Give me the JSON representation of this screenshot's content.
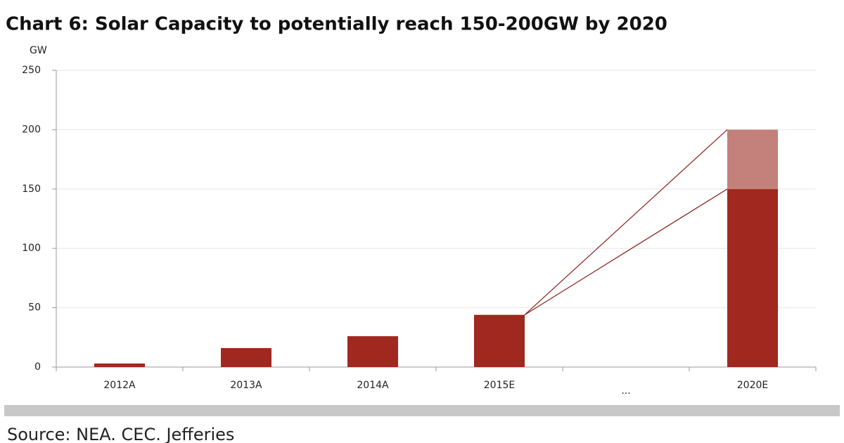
{
  "chart_data": {
    "type": "bar",
    "title": "Chart 6: Solar Capacity to potentially reach 150-200GW by 2020",
    "y_label": "GW",
    "source": "Source: NEA. CEC. Jefferies",
    "categories": [
      "2012A",
      "2013A",
      "2014A",
      "2015E",
      "...",
      "2020E"
    ],
    "series": [
      {
        "color": "#a0281e",
        "values": [
          3,
          16,
          26,
          44,
          null,
          150
        ]
      },
      {
        "color": "#c4807a",
        "values": [
          null,
          null,
          null,
          null,
          null,
          50
        ]
      }
    ],
    "stacked": true,
    "ylim": [
      0,
      250
    ],
    "yticks": [
      0,
      50,
      100,
      150,
      200,
      250
    ],
    "grid": true
  }
}
